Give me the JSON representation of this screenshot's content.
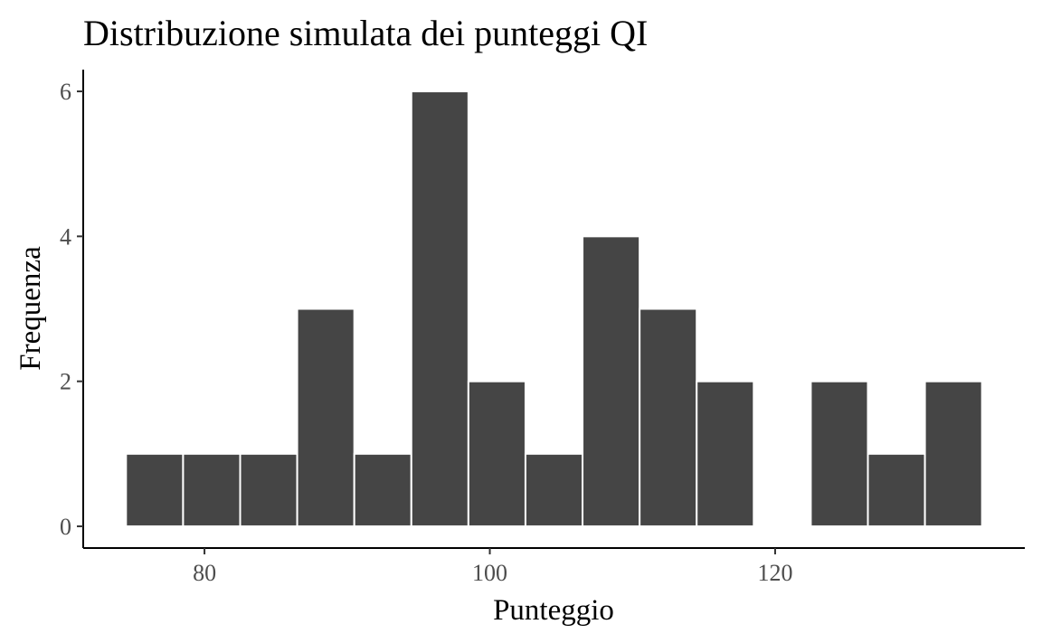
{
  "chart_data": {
    "type": "bar",
    "title": "Distribuzione simulata dei punteggi QI",
    "xlabel": "Punteggio",
    "ylabel": "Frequenza",
    "bin_width": 4,
    "bins": [
      {
        "start": 74.5,
        "end": 78.5,
        "count": 1
      },
      {
        "start": 78.5,
        "end": 82.5,
        "count": 1
      },
      {
        "start": 82.5,
        "end": 86.5,
        "count": 1
      },
      {
        "start": 86.5,
        "end": 90.5,
        "count": 3
      },
      {
        "start": 90.5,
        "end": 94.5,
        "count": 1
      },
      {
        "start": 94.5,
        "end": 98.5,
        "count": 6
      },
      {
        "start": 98.5,
        "end": 102.5,
        "count": 2
      },
      {
        "start": 102.5,
        "end": 106.5,
        "count": 1
      },
      {
        "start": 106.5,
        "end": 110.5,
        "count": 4
      },
      {
        "start": 110.5,
        "end": 114.5,
        "count": 3
      },
      {
        "start": 114.5,
        "end": 118.5,
        "count": 2
      },
      {
        "start": 118.5,
        "end": 122.5,
        "count": 0
      },
      {
        "start": 122.5,
        "end": 126.5,
        "count": 2
      },
      {
        "start": 126.5,
        "end": 130.5,
        "count": 1
      },
      {
        "start": 130.5,
        "end": 134.5,
        "count": 2
      }
    ],
    "xlim": [
      71.5,
      137.5
    ],
    "ylim": [
      -0.3,
      6.3
    ],
    "x_ticks": [
      80,
      100,
      120
    ],
    "y_ticks": [
      0,
      2,
      4,
      6
    ],
    "bar_color": "#454545",
    "bar_edge_color": "#ffffff",
    "grid": false
  }
}
